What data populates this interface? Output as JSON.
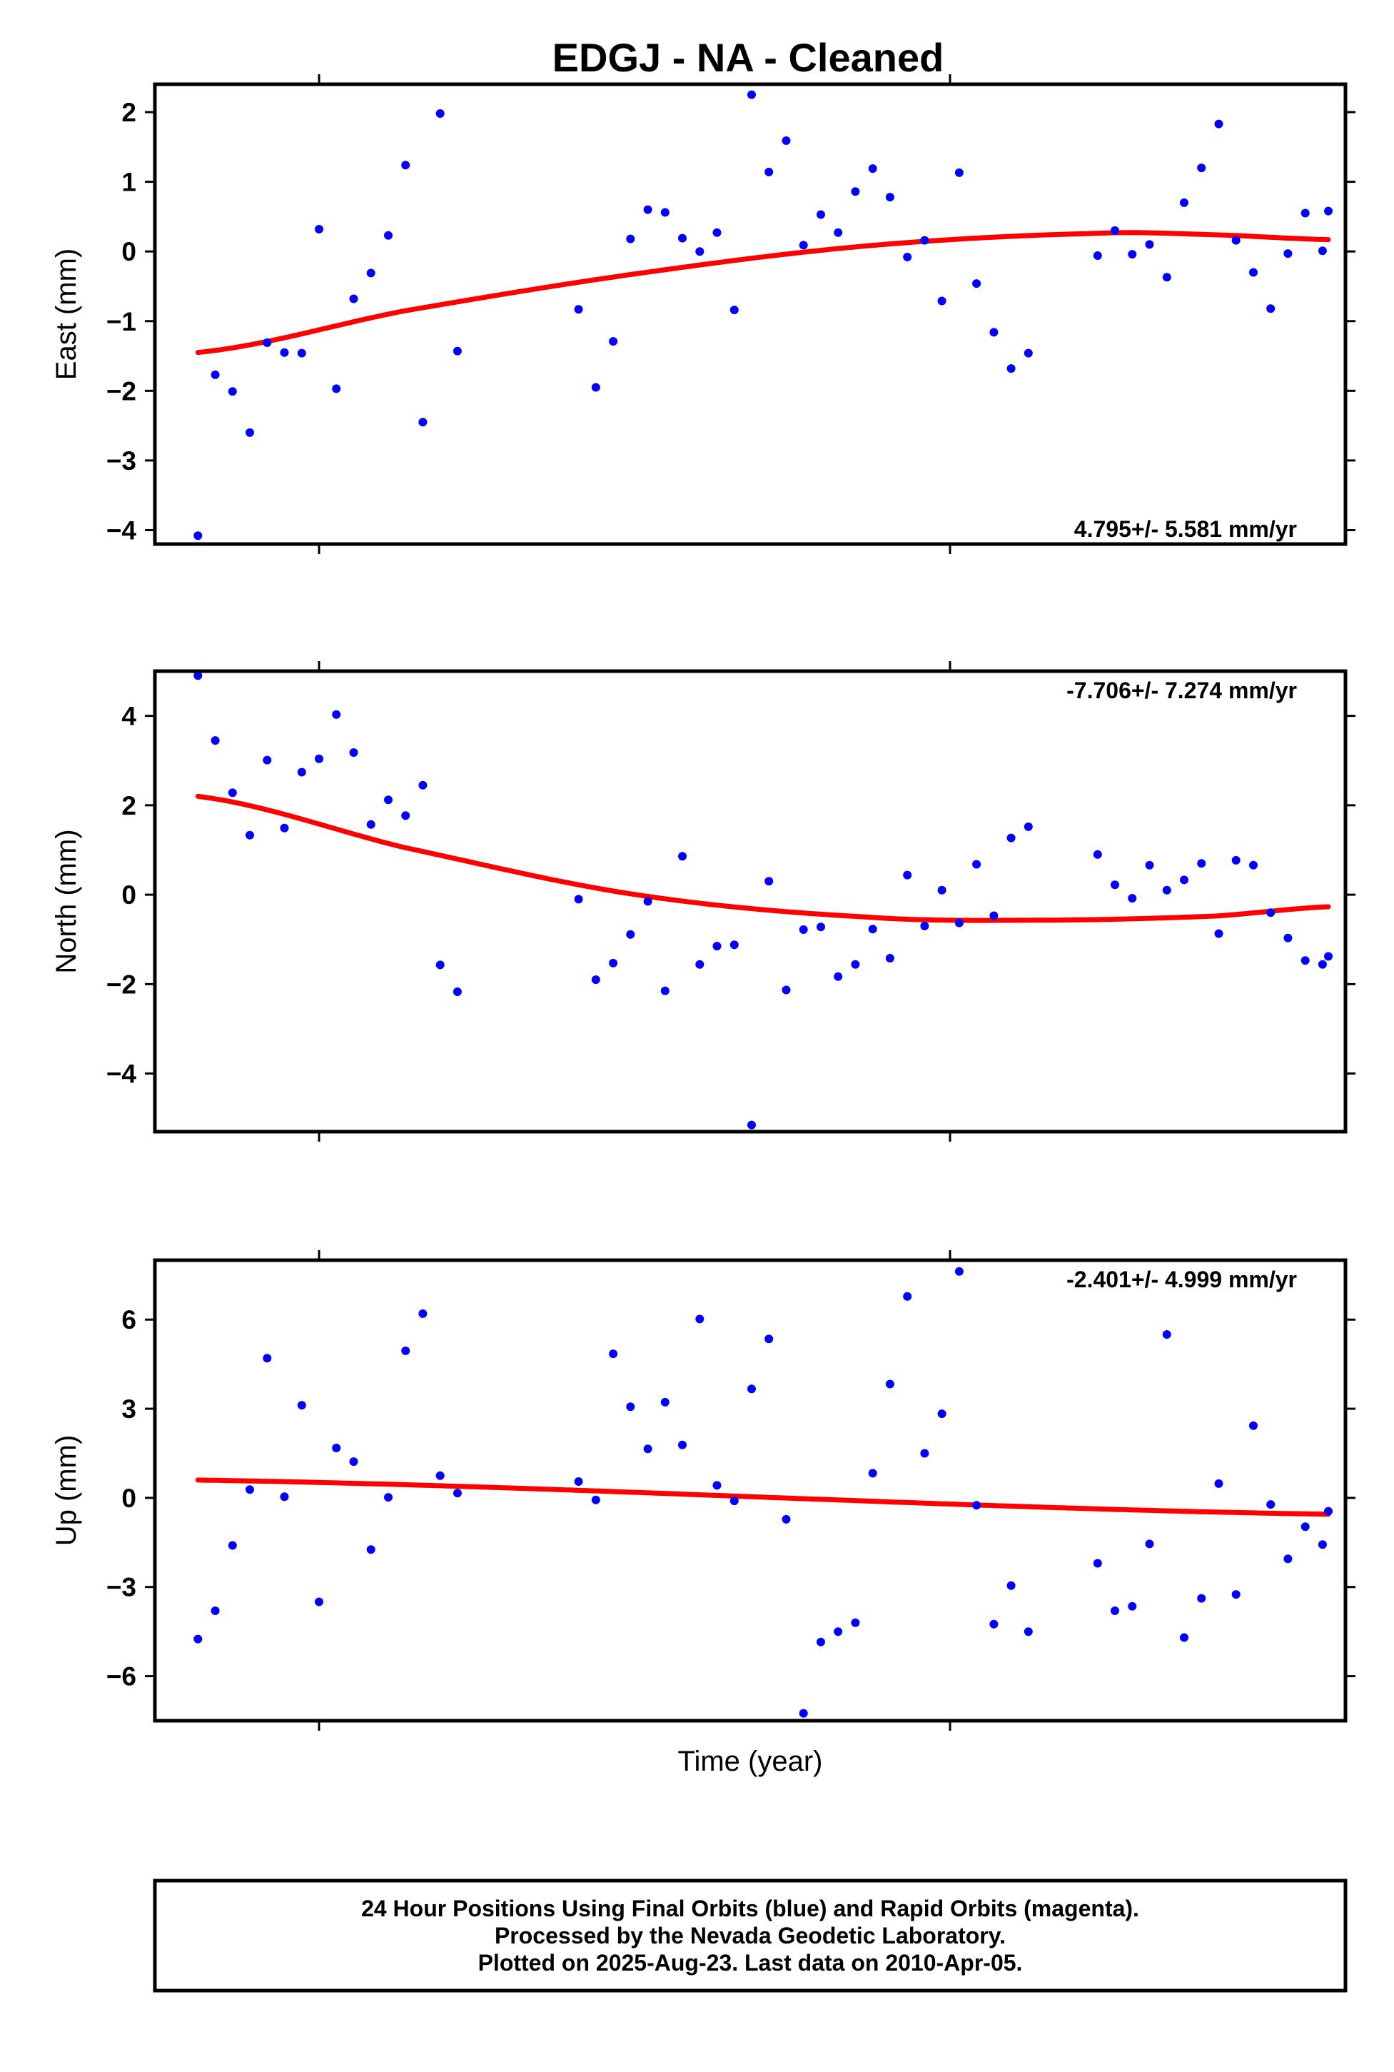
{
  "title": "EDGJ  - NA - Cleaned",
  "xlabel": "Time (year)",
  "colors": {
    "points": "#0000ff",
    "fit": "#ff0000",
    "frame": "#000000"
  },
  "footer": {
    "line1": "24 Hour Positions Using Final Orbits (blue) and Rapid Orbits (magenta).",
    "line2": "Processed by the Nevada Geodetic Laboratory.",
    "line3": "Plotted on 2025-Aug-23. Last data on 2010-Apr-05."
  },
  "chart_data": [
    {
      "type": "scatter",
      "name": "east",
      "ylabel": "East (mm)",
      "rate": "4.795+/- 5.581 mm/yr",
      "rate_position": "bottom-right",
      "xlim": [
        0,
        100
      ],
      "ylim": [
        -4.2,
        2.4
      ],
      "yticks": [
        2,
        1,
        0,
        -1,
        -2,
        -3,
        -4
      ],
      "ytick_labels": [
        "2",
        "1",
        "0",
        "−1",
        "−2",
        "−3",
        "−4"
      ],
      "x": [
        2,
        3.5,
        5,
        6.5,
        8,
        9.5,
        11,
        12.5,
        14,
        15.5,
        17,
        18.5,
        20,
        21.5,
        23,
        24.5,
        26,
        35,
        36.5,
        38,
        39.5,
        41,
        42.5,
        44,
        45.5,
        47,
        48.5,
        50,
        51.5,
        53,
        54.5,
        56,
        57.5,
        59,
        60.5,
        62,
        63.5,
        65,
        66.5,
        68,
        69.5,
        71,
        72.5,
        74,
        75.5,
        80,
        81.5,
        83,
        84.5,
        86,
        87.5,
        89,
        90.5,
        92,
        93.5,
        95,
        96.5,
        98,
        99.5
      ],
      "values": [
        -4.08,
        -1.77,
        -2.01,
        -2.6,
        -1.31,
        -1.45,
        -1.46,
        0.32,
        -1.97,
        -0.68,
        -0.31,
        0.23,
        1.24,
        -2.45,
        1.98,
        -1.43,
        null,
        -0.83,
        -1.95,
        -1.29,
        0.18,
        0.6,
        0.56,
        0.19,
        0.0,
        0.27,
        -0.84,
        2.25,
        1.14,
        1.59,
        0.09,
        0.53,
        0.27,
        0.86,
        1.19,
        0.78,
        -0.08,
        0.16,
        -0.71,
        1.13,
        -0.46,
        -1.16,
        -1.68,
        -1.46,
        null,
        -0.06,
        0.3,
        -0.04,
        0.1,
        -0.37,
        0.7,
        1.2,
        1.83,
        0.16,
        -0.3,
        -0.82,
        -0.03,
        0.55,
        0.01
      ],
      "extra_x": [
        100
      ],
      "extra_values": [
        0.58
      ],
      "fit": {
        "x": [
          2,
          20,
          40,
          60,
          80,
          90,
          100
        ],
        "values": [
          -1.45,
          -0.85,
          -0.32,
          0.08,
          0.26,
          0.24,
          0.17
        ]
      }
    },
    {
      "type": "scatter",
      "name": "north",
      "ylabel": "North (mm)",
      "rate": "-7.706+/- 7.274 mm/yr",
      "rate_position": "top-right",
      "xlim": [
        0,
        100
      ],
      "ylim": [
        -5.3,
        5.0
      ],
      "yticks": [
        4,
        2,
        0,
        -2,
        -4
      ],
      "ytick_labels": [
        "4",
        "2",
        "0",
        "−2",
        "−4"
      ],
      "x": [
        2,
        3.5,
        5,
        6.5,
        8,
        9.5,
        11,
        12.5,
        14,
        15.5,
        17,
        18.5,
        20,
        21.5,
        23,
        24.5,
        35,
        36.5,
        38,
        39.5,
        41,
        42.5,
        44,
        45.5,
        47,
        48.5,
        50,
        51.5,
        53,
        54.5,
        56,
        57.5,
        59,
        60.5,
        62,
        63.5,
        65,
        66.5,
        68,
        69.5,
        71,
        72.5,
        74,
        80,
        81.5,
        83,
        84.5,
        86,
        87.5,
        89,
        90.5,
        92,
        93.5,
        95,
        96.5,
        98,
        99.5,
        100
      ],
      "values": [
        4.9,
        3.45,
        2.28,
        1.33,
        3.01,
        1.49,
        2.74,
        3.04,
        4.03,
        3.18,
        1.57,
        2.12,
        1.77,
        2.45,
        -1.57,
        -2.17,
        -0.1,
        -1.9,
        -1.53,
        -0.89,
        -0.15,
        -2.15,
        0.86,
        -1.56,
        -1.15,
        -1.12,
        -5.15,
        0.3,
        -2.13,
        -0.78,
        -0.72,
        -1.83,
        -1.56,
        -0.77,
        -1.42,
        0.44,
        -0.7,
        0.1,
        -0.63,
        0.68,
        -0.47,
        1.27,
        1.52,
        0.9,
        0.22,
        -0.08,
        0.66,
        0.1,
        0.33,
        0.7,
        -0.87,
        0.77,
        0.66,
        -0.4,
        -0.97,
        -1.47,
        -1.56,
        -1.38
      ],
      "fit": {
        "x": [
          2,
          20,
          40,
          60,
          75,
          90,
          100
        ],
        "values": [
          2.2,
          1.05,
          0.0,
          -0.5,
          -0.57,
          -0.48,
          -0.27
        ]
      }
    },
    {
      "type": "scatter",
      "name": "up",
      "ylabel": "Up (mm)",
      "rate": "-2.401+/- 4.999 mm/yr",
      "rate_position": "top-right",
      "xlim": [
        0,
        100
      ],
      "ylim": [
        -7.5,
        8.0
      ],
      "yticks": [
        6,
        3,
        0,
        -3,
        -6
      ],
      "ytick_labels": [
        "6",
        "3",
        "0",
        "−3",
        "−6"
      ],
      "x": [
        2,
        3.5,
        5,
        6.5,
        8,
        9.5,
        11,
        12.5,
        14,
        15.5,
        17,
        18.5,
        20,
        21.5,
        23,
        24.5,
        35,
        36.5,
        38,
        39.5,
        41,
        42.5,
        44,
        45.5,
        47,
        48.5,
        50,
        51.5,
        53,
        54.5,
        56,
        57.5,
        59,
        60.5,
        62,
        63.5,
        65,
        66.5,
        68,
        69.5,
        71,
        72.5,
        74,
        80,
        81.5,
        83,
        84.5,
        86,
        87.5,
        89,
        90.5,
        92,
        93.5,
        95,
        96.5,
        98,
        99.5
      ],
      "values": [
        -4.75,
        -3.8,
        -1.6,
        0.28,
        4.7,
        0.04,
        3.12,
        -3.5,
        1.68,
        1.22,
        -1.74,
        0.02,
        4.95,
        6.2,
        0.75,
        0.16,
        0.55,
        -0.07,
        4.85,
        3.07,
        1.65,
        3.22,
        1.78,
        6.02,
        0.42,
        -0.1,
        3.67,
        5.35,
        -0.72,
        -7.25,
        -4.85,
        -4.5,
        -4.2,
        0.83,
        3.83,
        6.78,
        1.5,
        2.83,
        7.62,
        -0.25,
        -4.25,
        -2.95,
        -4.5,
        -2.2,
        -3.8,
        -3.65,
        -1.55,
        5.5,
        -4.7,
        -3.38,
        0.48,
        -3.25,
        2.43,
        -0.22,
        -2.05,
        -0.97,
        -1.57
      ],
      "extra_x": [
        100
      ],
      "extra_values": [
        -0.45
      ],
      "fit": {
        "x": [
          2,
          100
        ],
        "values": [
          0.6,
          -0.55
        ]
      }
    }
  ]
}
